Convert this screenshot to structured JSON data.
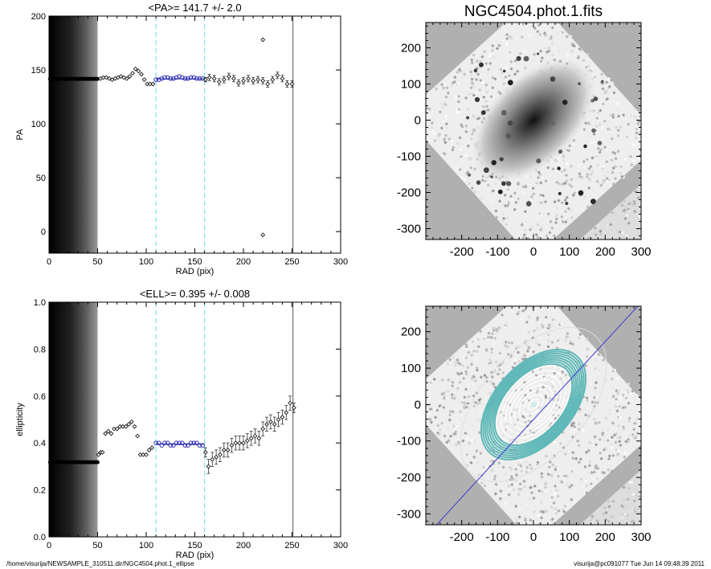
{
  "footer": {
    "left": "/home/visurija/NEWSAMPLE_310511.dir/NGC4504.phot.1_ellipse",
    "right": "visurija@pc091077  Tue Jun 14 09:48:39 2011"
  },
  "chart_data": [
    {
      "id": "pa",
      "type": "scatter",
      "title": "<PA>= 141.7 +/-   2.0",
      "xlabel": "RAD (pix)",
      "ylabel": "PA",
      "xlim": [
        0,
        300
      ],
      "ylim": [
        -20,
        200
      ],
      "xticks": [
        0,
        50,
        100,
        150,
        200,
        250,
        300
      ],
      "yticks": [
        0,
        50,
        100,
        150,
        200
      ],
      "vlines_dashed": [
        110,
        160
      ],
      "vline_solid": 251,
      "mean_value": 141.7,
      "series": [
        {
          "name": "",
          "style": "filled",
          "x": [
            1,
            2,
            3,
            4,
            5,
            6,
            7,
            8,
            9,
            10,
            11,
            12,
            13,
            14,
            15,
            16,
            17,
            18,
            19,
            20,
            21,
            22,
            23,
            24,
            25,
            26,
            27,
            28,
            29,
            30,
            31,
            32,
            33,
            34,
            35,
            36,
            37,
            38,
            39,
            40,
            41,
            42,
            43,
            44,
            45,
            46,
            47,
            48,
            49,
            50
          ],
          "y": [
            141.7,
            141.7,
            141.7,
            141.7,
            141.7,
            141.7,
            141.7,
            141.7,
            141.7,
            141.7,
            141.7,
            141.7,
            141.7,
            141.7,
            141.7,
            141.7,
            141.7,
            141.7,
            141.7,
            141.7,
            141.7,
            141.7,
            141.7,
            141.7,
            141.7,
            141.7,
            141.7,
            141.7,
            141.7,
            141.7,
            141.7,
            141.7,
            141.7,
            141.7,
            141.7,
            141.7,
            141.7,
            141.7,
            141.7,
            141.7,
            141.7,
            141.7,
            141.7,
            141.7,
            141.7,
            141.7,
            141.7,
            141.7,
            141.7,
            141.7
          ]
        },
        {
          "name": "",
          "style": "open",
          "x": [
            53,
            56,
            59,
            62,
            65,
            68,
            71,
            74,
            77,
            80,
            83,
            86,
            89,
            92,
            95,
            98,
            101,
            104,
            107
          ],
          "y": [
            142,
            143,
            143,
            142,
            141,
            142,
            143,
            144,
            143,
            142,
            144,
            147,
            151,
            149,
            146,
            141,
            137,
            137,
            137
          ]
        },
        {
          "name": "",
          "style": "blue",
          "x": [
            110,
            113,
            116,
            119,
            122,
            125,
            128,
            131,
            134,
            137,
            140,
            143,
            146,
            149,
            152,
            155,
            158
          ],
          "y": [
            141,
            141,
            142,
            143,
            143,
            142,
            142,
            143,
            144,
            143,
            142,
            142,
            143,
            143,
            142,
            142,
            142
          ]
        },
        {
          "name": "",
          "style": "open",
          "x": [
            161,
            165,
            170,
            175,
            180,
            185,
            190,
            195,
            200,
            205,
            210,
            215,
            220,
            225,
            230,
            235,
            240,
            245,
            250
          ],
          "y": [
            141,
            143,
            142,
            139,
            141,
            144,
            142,
            138,
            140,
            142,
            140,
            141,
            140,
            137,
            141,
            145,
            142,
            137,
            137
          ],
          "yerr": [
            2,
            3,
            3,
            3,
            3,
            3,
            3,
            3,
            3,
            3,
            3,
            3,
            3,
            3,
            3,
            3,
            3,
            3,
            3
          ]
        },
        {
          "name": "",
          "style": "outlier",
          "x": [
            220,
            220
          ],
          "y": [
            178,
            -3
          ]
        }
      ]
    },
    {
      "id": "ell",
      "type": "scatter",
      "title": "<ELL>= 0.395 +/-  0.008",
      "xlabel": "RAD (pix)",
      "ylabel": "ellipticity",
      "xlim": [
        0,
        300
      ],
      "ylim": [
        0,
        1
      ],
      "xticks": [
        0,
        50,
        100,
        150,
        200,
        250,
        300
      ],
      "yticks": [
        0.0,
        0.2,
        0.4,
        0.6,
        0.8,
        1.0
      ],
      "vlines_dashed": [
        110,
        160
      ],
      "vline_solid": 251,
      "mean_value": 0.395,
      "series": [
        {
          "name": "",
          "style": "filled",
          "x": [
            1,
            2,
            3,
            4,
            5,
            6,
            7,
            8,
            9,
            10,
            11,
            12,
            13,
            14,
            15,
            16,
            17,
            18,
            19,
            20,
            21,
            22,
            23,
            24,
            25,
            26,
            27,
            28,
            29,
            30,
            31,
            32,
            33,
            34,
            35,
            36,
            37,
            38,
            39,
            40,
            41,
            42,
            43,
            44,
            45,
            46,
            47,
            48,
            49,
            50
          ],
          "y": [
            0.318,
            0.318,
            0.318,
            0.318,
            0.318,
            0.318,
            0.318,
            0.318,
            0.318,
            0.318,
            0.318,
            0.318,
            0.318,
            0.318,
            0.318,
            0.318,
            0.318,
            0.318,
            0.318,
            0.318,
            0.318,
            0.318,
            0.318,
            0.318,
            0.318,
            0.318,
            0.318,
            0.318,
            0.318,
            0.318,
            0.318,
            0.318,
            0.318,
            0.318,
            0.318,
            0.318,
            0.318,
            0.318,
            0.318,
            0.318,
            0.318,
            0.318,
            0.318,
            0.318,
            0.318,
            0.318,
            0.318,
            0.318,
            0.318,
            0.318
          ]
        },
        {
          "name": "",
          "style": "open",
          "x": [
            51,
            53,
            55,
            58,
            61,
            64,
            67,
            70,
            73,
            76,
            79,
            82,
            85,
            88,
            91,
            94,
            97,
            100,
            103,
            106
          ],
          "y": [
            0.35,
            0.36,
            0.36,
            0.44,
            0.45,
            0.44,
            0.46,
            0.46,
            0.47,
            0.47,
            0.47,
            0.48,
            0.49,
            0.47,
            0.43,
            0.35,
            0.35,
            0.35,
            0.37,
            0.38
          ]
        },
        {
          "name": "",
          "style": "blue",
          "x": [
            110,
            113,
            116,
            119,
            122,
            125,
            128,
            131,
            134,
            137,
            140,
            143,
            146,
            149,
            152,
            155,
            158
          ],
          "y": [
            0.4,
            0.4,
            0.39,
            0.4,
            0.4,
            0.39,
            0.39,
            0.4,
            0.4,
            0.4,
            0.39,
            0.39,
            0.4,
            0.4,
            0.4,
            0.39,
            0.39
          ]
        },
        {
          "name": "",
          "style": "open",
          "x": [
            161,
            164,
            168,
            172,
            176,
            180,
            184,
            188,
            192,
            196,
            200,
            204,
            208,
            212,
            216,
            220,
            224,
            228,
            232,
            236,
            240,
            244,
            248,
            252
          ],
          "y": [
            0.36,
            0.3,
            0.33,
            0.34,
            0.35,
            0.37,
            0.37,
            0.39,
            0.4,
            0.4,
            0.4,
            0.41,
            0.42,
            0.43,
            0.42,
            0.46,
            0.48,
            0.49,
            0.48,
            0.5,
            0.51,
            0.53,
            0.57,
            0.55
          ],
          "yerr": [
            0.02,
            0.03,
            0.03,
            0.03,
            0.03,
            0.03,
            0.03,
            0.03,
            0.03,
            0.03,
            0.03,
            0.03,
            0.03,
            0.03,
            0.03,
            0.03,
            0.03,
            0.03,
            0.03,
            0.03,
            0.03,
            0.03,
            0.03,
            0.02
          ]
        }
      ]
    },
    {
      "id": "img1",
      "type": "image",
      "title": "NGC4504.phot.1.fits",
      "xlim": [
        -300,
        300
      ],
      "ylim": [
        -330,
        270
      ],
      "xticks": [
        -200,
        -100,
        0,
        100,
        200,
        300
      ],
      "yticks": [
        -300,
        -200,
        -100,
        0,
        100,
        200
      ],
      "background": "#b0b0b0"
    },
    {
      "id": "img2",
      "type": "image",
      "title": "",
      "xlim": [
        -300,
        300
      ],
      "ylim": [
        -330,
        270
      ],
      "xticks": [
        -200,
        -100,
        0,
        100,
        200,
        300
      ],
      "yticks": [
        -300,
        -200,
        -100,
        0,
        100,
        200
      ],
      "background": "#b0b0b0",
      "contour_color": "#60b8b8",
      "axis_line_color": "#3a3ad0"
    }
  ]
}
